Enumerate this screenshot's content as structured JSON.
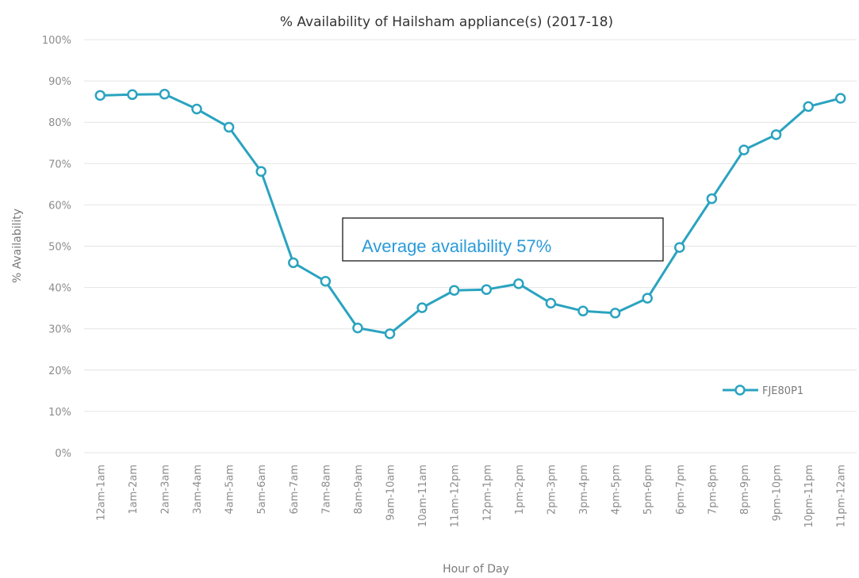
{
  "chart_data": {
    "type": "line",
    "title": "% Availability of Hailsham appliance(s) (2017-18)",
    "xlabel": "Hour of Day",
    "ylabel": "% Availability",
    "ylim": [
      0,
      100
    ],
    "y_ticks": [
      "0%",
      "10%",
      "20%",
      "30%",
      "40%",
      "50%",
      "60%",
      "70%",
      "80%",
      "90%",
      "100%"
    ],
    "categories": [
      "12am-1am",
      "1am-2am",
      "2am-3am",
      "3am-4am",
      "4am-5am",
      "5am-6am",
      "6am-7am",
      "7am-8am",
      "8am-9am",
      "9am-10am",
      "10am-11am",
      "11am-12pm",
      "12pm-1pm",
      "1pm-2pm",
      "2pm-3pm",
      "3pm-4pm",
      "4pm-5pm",
      "5pm-6pm",
      "6pm-7pm",
      "7pm-8pm",
      "8pm-9pm",
      "9pm-10pm",
      "10pm-11pm",
      "11pm-12am"
    ],
    "series": [
      {
        "name": "FJE80P1",
        "color": "#2aa3c0",
        "values": [
          86.5,
          86.7,
          86.8,
          83.2,
          78.8,
          68.1,
          46.0,
          41.5,
          30.2,
          28.8,
          35.1,
          39.3,
          39.5,
          40.9,
          36.2,
          34.3,
          33.8,
          37.4,
          49.7,
          61.5,
          73.3,
          77.0,
          83.8,
          85.8
        ]
      }
    ],
    "grid": true,
    "legend_position": "right",
    "annotation": {
      "text": "Average availability 57%",
      "color": "#2b9bd8"
    }
  }
}
